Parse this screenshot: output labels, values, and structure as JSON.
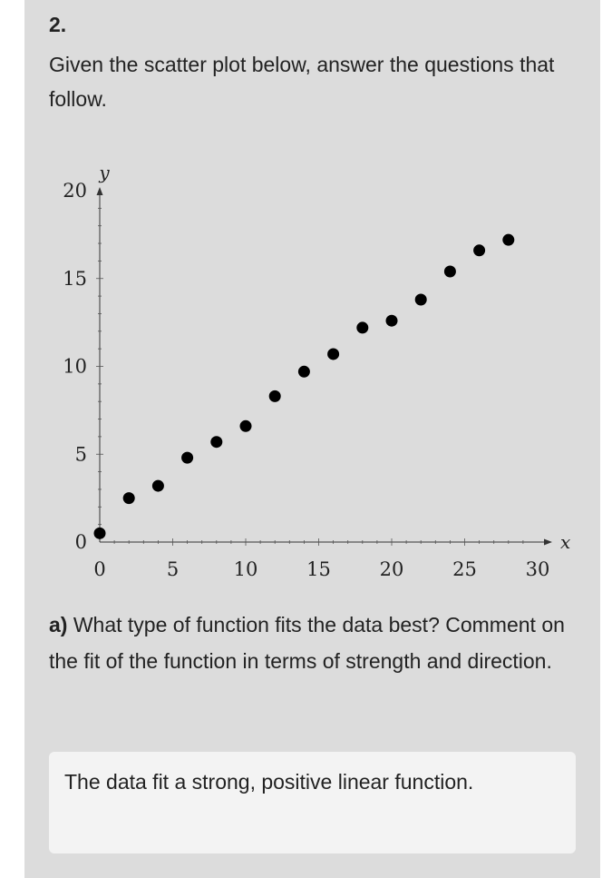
{
  "question": {
    "number": "2.",
    "prompt": "Given the scatter plot below, answer the questions that follow."
  },
  "chart_data": {
    "type": "scatter",
    "xlabel": "x",
    "ylabel": "y",
    "xlim": [
      0,
      30
    ],
    "ylim": [
      0,
      20
    ],
    "x_ticks": [
      0,
      5,
      10,
      15,
      20,
      25,
      30
    ],
    "y_ticks": [
      0,
      5,
      10,
      15,
      20
    ],
    "x_tick_labels": [
      "0",
      "5",
      "10",
      "15",
      "20",
      "25",
      "30"
    ],
    "y_tick_labels": [
      "0",
      "5",
      "10",
      "15",
      "20"
    ],
    "grid": false,
    "points": [
      {
        "x": 0,
        "y": 0.5
      },
      {
        "x": 2,
        "y": 2.5
      },
      {
        "x": 4,
        "y": 3.2
      },
      {
        "x": 6,
        "y": 4.8
      },
      {
        "x": 8,
        "y": 5.7
      },
      {
        "x": 10,
        "y": 6.6
      },
      {
        "x": 12,
        "y": 8.3
      },
      {
        "x": 14,
        "y": 9.7
      },
      {
        "x": 16,
        "y": 10.7
      },
      {
        "x": 18,
        "y": 12.2
      },
      {
        "x": 20,
        "y": 12.6
      },
      {
        "x": 22,
        "y": 13.8
      },
      {
        "x": 24,
        "y": 15.4
      },
      {
        "x": 26,
        "y": 16.6
      },
      {
        "x": 28,
        "y": 17.2
      }
    ],
    "marker_color": "#000000"
  },
  "part_a": {
    "label": "a)",
    "text": "What type of function fits the data best? Comment on the fit of the function in terms of strength and direction."
  },
  "answer": {
    "text": "The data fit a strong, positive linear function."
  }
}
